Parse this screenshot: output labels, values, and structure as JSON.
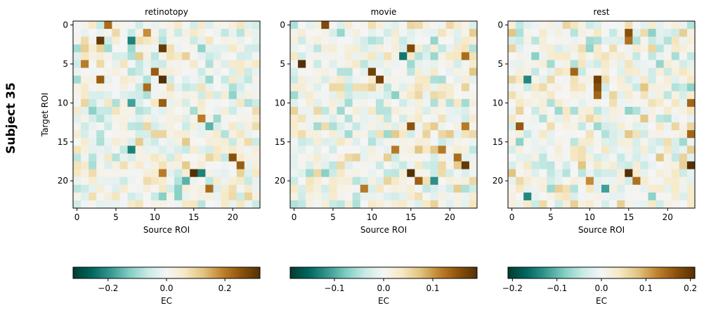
{
  "figure": {
    "row_label": "Subject 35"
  },
  "chart_data": [
    {
      "type": "heatmap",
      "title": "retinotopy",
      "xlabel": "Source ROI",
      "ylabel": "Target ROI",
      "x_ticks": [
        0,
        5,
        10,
        15,
        20
      ],
      "y_ticks": [
        0,
        5,
        10,
        15,
        20
      ],
      "n_rows": 24,
      "n_cols": 24,
      "colormap": "BrBG_r",
      "color_range": [
        -0.32,
        0.32
      ],
      "colorbar": {
        "label": "EC",
        "ticks": [
          -0.2,
          0.0,
          0.2
        ],
        "tick_labels": [
          "−0.2",
          "0.0",
          "0.2"
        ]
      },
      "seed": 11,
      "approx_values": [
        {
          "row": 0,
          "col": 4,
          "value": 0.22
        },
        {
          "row": 1,
          "col": 9,
          "value": 0.18
        },
        {
          "row": 2,
          "col": 7,
          "value": -0.22
        },
        {
          "row": 2,
          "col": 3,
          "value": 0.3
        },
        {
          "row": 3,
          "col": 11,
          "value": 0.3
        },
        {
          "row": 5,
          "col": 1,
          "value": 0.2
        },
        {
          "row": 6,
          "col": 10,
          "value": 0.24
        },
        {
          "row": 7,
          "col": 11,
          "value": 0.32
        },
        {
          "row": 7,
          "col": 3,
          "value": 0.24
        },
        {
          "row": 8,
          "col": 9,
          "value": 0.22
        },
        {
          "row": 10,
          "col": 11,
          "value": 0.24
        },
        {
          "row": 10,
          "col": 7,
          "value": -0.18
        },
        {
          "row": 12,
          "col": 16,
          "value": 0.2
        },
        {
          "row": 13,
          "col": 17,
          "value": -0.16
        },
        {
          "row": 16,
          "col": 7,
          "value": -0.22
        },
        {
          "row": 17,
          "col": 20,
          "value": 0.26
        },
        {
          "row": 18,
          "col": 21,
          "value": 0.24
        },
        {
          "row": 19,
          "col": 15,
          "value": 0.32
        },
        {
          "row": 19,
          "col": 16,
          "value": -0.22
        },
        {
          "row": 19,
          "col": 11,
          "value": 0.2
        },
        {
          "row": 20,
          "col": 14,
          "value": -0.16
        },
        {
          "row": 21,
          "col": 17,
          "value": 0.22
        }
      ]
    },
    {
      "type": "heatmap",
      "title": "movie",
      "xlabel": "Source ROI",
      "ylabel": "",
      "x_ticks": [
        0,
        5,
        10,
        15,
        20
      ],
      "y_ticks": [
        0,
        5,
        10,
        15,
        20
      ],
      "n_rows": 24,
      "n_cols": 24,
      "colormap": "BrBG_r",
      "color_range": [
        -0.19,
        0.19
      ],
      "colorbar": {
        "label": "EC",
        "ticks": [
          -0.1,
          0.0,
          0.1
        ],
        "tick_labels": [
          "−0.1",
          "0.0",
          "0.1"
        ]
      },
      "seed": 23,
      "approx_values": [
        {
          "row": 0,
          "col": 4,
          "value": 0.16
        },
        {
          "row": 3,
          "col": 15,
          "value": 0.16
        },
        {
          "row": 4,
          "col": 14,
          "value": -0.14
        },
        {
          "row": 4,
          "col": 22,
          "value": 0.13
        },
        {
          "row": 5,
          "col": 1,
          "value": 0.19
        },
        {
          "row": 6,
          "col": 10,
          "value": 0.17
        },
        {
          "row": 7,
          "col": 11,
          "value": 0.17
        },
        {
          "row": 13,
          "col": 15,
          "value": 0.15
        },
        {
          "row": 13,
          "col": 22,
          "value": 0.12
        },
        {
          "row": 16,
          "col": 13,
          "value": 0.12
        },
        {
          "row": 16,
          "col": 19,
          "value": 0.12
        },
        {
          "row": 17,
          "col": 21,
          "value": 0.13
        },
        {
          "row": 18,
          "col": 22,
          "value": 0.18
        },
        {
          "row": 19,
          "col": 15,
          "value": 0.19
        },
        {
          "row": 20,
          "col": 16,
          "value": 0.14
        },
        {
          "row": 20,
          "col": 18,
          "value": -0.12
        },
        {
          "row": 21,
          "col": 9,
          "value": 0.12
        }
      ]
    },
    {
      "type": "heatmap",
      "title": "rest",
      "xlabel": "Source ROI",
      "ylabel": "",
      "x_ticks": [
        0,
        5,
        10,
        15,
        20
      ],
      "y_ticks": [
        0,
        5,
        10,
        15,
        20
      ],
      "n_rows": 24,
      "n_cols": 24,
      "colormap": "BrBG_r",
      "color_range": [
        -0.21,
        0.21
      ],
      "colorbar": {
        "label": "EC",
        "ticks": [
          -0.2,
          -0.1,
          0.0,
          0.1,
          0.2
        ],
        "tick_labels": [
          "−0.2",
          "−0.1",
          "0.0",
          "0.1",
          "0.2"
        ]
      },
      "seed": 37,
      "approx_values": [
        {
          "row": 1,
          "col": 15,
          "value": 0.17
        },
        {
          "row": 2,
          "col": 15,
          "value": 0.14
        },
        {
          "row": 6,
          "col": 8,
          "value": 0.15
        },
        {
          "row": 7,
          "col": 11,
          "value": 0.19
        },
        {
          "row": 8,
          "col": 11,
          "value": 0.17
        },
        {
          "row": 9,
          "col": 11,
          "value": 0.15
        },
        {
          "row": 7,
          "col": 2,
          "value": -0.14
        },
        {
          "row": 10,
          "col": 23,
          "value": 0.15
        },
        {
          "row": 13,
          "col": 1,
          "value": 0.16
        },
        {
          "row": 14,
          "col": 23,
          "value": 0.15
        },
        {
          "row": 18,
          "col": 23,
          "value": 0.21
        },
        {
          "row": 19,
          "col": 15,
          "value": 0.21
        },
        {
          "row": 20,
          "col": 16,
          "value": 0.14
        },
        {
          "row": 21,
          "col": 12,
          "value": -0.12
        },
        {
          "row": 22,
          "col": 2,
          "value": -0.14
        },
        {
          "row": 20,
          "col": 10,
          "value": 0.12
        }
      ]
    }
  ]
}
